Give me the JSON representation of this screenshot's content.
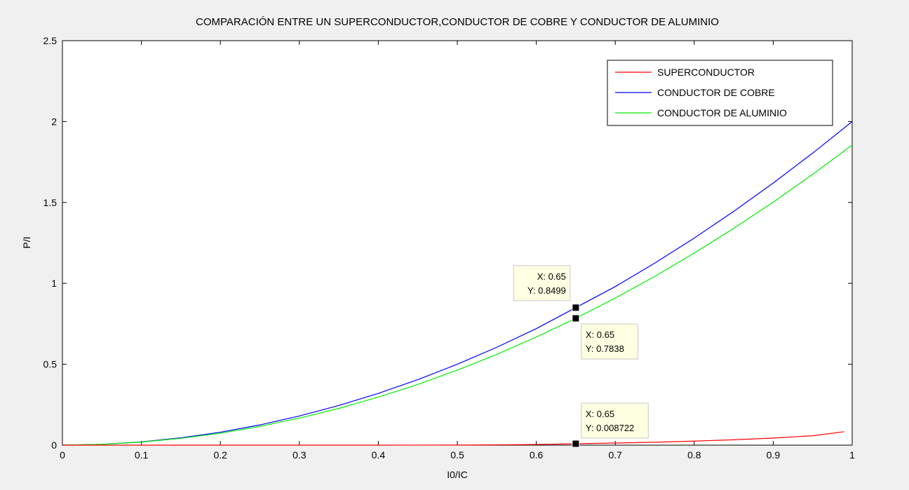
{
  "chart_data": {
    "type": "line",
    "title": "COMPARACIÓN ENTRE UN SUPERCONDUCTOR,CONDUCTOR DE COBRE Y CONDUCTOR DE ALUMINIO",
    "xlabel": "I0/IC",
    "ylabel": "P/I",
    "xlim": [
      0,
      1
    ],
    "ylim": [
      0,
      2.5
    ],
    "xticks": [
      0,
      0.1,
      0.2,
      0.3,
      0.4,
      0.5,
      0.6,
      0.7,
      0.8,
      0.9,
      1
    ],
    "xtick_labels": [
      "0",
      "0.1",
      "0.2",
      "0.3",
      "0.4",
      "0.5",
      "0.6",
      "0.7",
      "0.8",
      "0.9",
      "1"
    ],
    "yticks": [
      0,
      0.5,
      1,
      1.5,
      2,
      2.5
    ],
    "ytick_labels": [
      "0",
      "0.5",
      "1",
      "1.5",
      "2",
      "2.5"
    ],
    "grid": false,
    "legend_position": "top-right",
    "series": [
      {
        "name": "SUPERCONDUCTOR",
        "color": "#ff0000",
        "x": [
          0,
          0.05,
          0.1,
          0.15,
          0.2,
          0.25,
          0.3,
          0.35,
          0.4,
          0.45,
          0.5,
          0.55,
          0.6,
          0.65,
          0.7,
          0.75,
          0.8,
          0.85,
          0.9,
          0.95,
          0.99
        ],
        "y": [
          0,
          0,
          0,
          0,
          0,
          0,
          0,
          0,
          0,
          0.0002,
          0.0005,
          0.0015,
          0.004,
          0.008722,
          0.013,
          0.018,
          0.025,
          0.033,
          0.044,
          0.058,
          0.083
        ]
      },
      {
        "name": "CONDUCTOR DE COBRE",
        "color": "#0000ff",
        "x": [
          0,
          0.05,
          0.1,
          0.15,
          0.2,
          0.25,
          0.3,
          0.35,
          0.4,
          0.45,
          0.5,
          0.55,
          0.6,
          0.65,
          0.7,
          0.75,
          0.8,
          0.85,
          0.9,
          0.95,
          1
        ],
        "y": [
          0,
          0.005,
          0.02,
          0.045,
          0.08,
          0.125,
          0.18,
          0.245,
          0.32,
          0.405,
          0.5,
          0.605,
          0.72,
          0.8499,
          0.98,
          1.125,
          1.28,
          1.445,
          1.62,
          1.805,
          2.0
        ]
      },
      {
        "name": "CONDUCTOR DE ALUMINIO",
        "color": "#00ee00",
        "x": [
          0,
          0.05,
          0.1,
          0.15,
          0.2,
          0.25,
          0.3,
          0.35,
          0.4,
          0.45,
          0.5,
          0.55,
          0.6,
          0.65,
          0.7,
          0.75,
          0.8,
          0.85,
          0.9,
          0.95,
          1
        ],
        "y": [
          0,
          0.005,
          0.019,
          0.042,
          0.074,
          0.116,
          0.167,
          0.227,
          0.297,
          0.375,
          0.464,
          0.561,
          0.668,
          0.7838,
          0.909,
          1.043,
          1.187,
          1.34,
          1.502,
          1.674,
          1.855
        ]
      }
    ],
    "datatips": [
      {
        "series": "CONDUCTOR DE COBRE",
        "x": 0.65,
        "y": 0.8499,
        "label_x": "X: 0.65",
        "label_y": "Y: 0.8499",
        "placement": "upper-left"
      },
      {
        "series": "CONDUCTOR DE ALUMINIO",
        "x": 0.65,
        "y": 0.7838,
        "label_x": "X: 0.65",
        "label_y": "Y: 0.7838",
        "placement": "lower-right"
      },
      {
        "series": "SUPERCONDUCTOR",
        "x": 0.65,
        "y": 0.008722,
        "label_x": "X: 0.65",
        "label_y": "Y: 0.008722",
        "placement": "upper-right"
      }
    ]
  }
}
